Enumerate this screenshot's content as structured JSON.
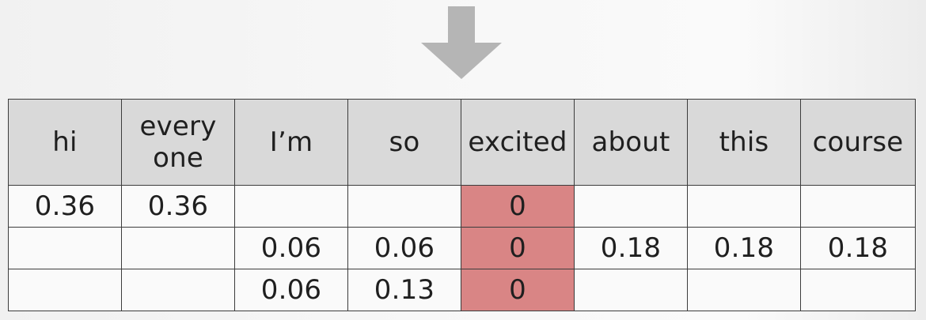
{
  "columns": [
    {
      "label": "hi",
      "highlighted": false
    },
    {
      "label": "every one",
      "highlighted": false
    },
    {
      "label": "I’m",
      "highlighted": false
    },
    {
      "label": "so",
      "highlighted": false
    },
    {
      "label": "excited",
      "highlighted": true
    },
    {
      "label": "about",
      "highlighted": false
    },
    {
      "label": "this",
      "highlighted": false
    },
    {
      "label": "course",
      "highlighted": false
    }
  ],
  "rows": [
    [
      "0.36",
      "0.36",
      "",
      "",
      "0",
      "",
      "",
      ""
    ],
    [
      "",
      "",
      "0.06",
      "0.06",
      "0",
      "0.18",
      "0.18",
      "0.18"
    ],
    [
      "",
      "",
      "0.06",
      "0.13",
      "0",
      "",
      "",
      ""
    ]
  ],
  "colors": {
    "header_background": "#d9d9d9",
    "highlight_column": "#d98585",
    "arrow": "#b5b5b5",
    "grid_lines": "#3c3c3c"
  }
}
